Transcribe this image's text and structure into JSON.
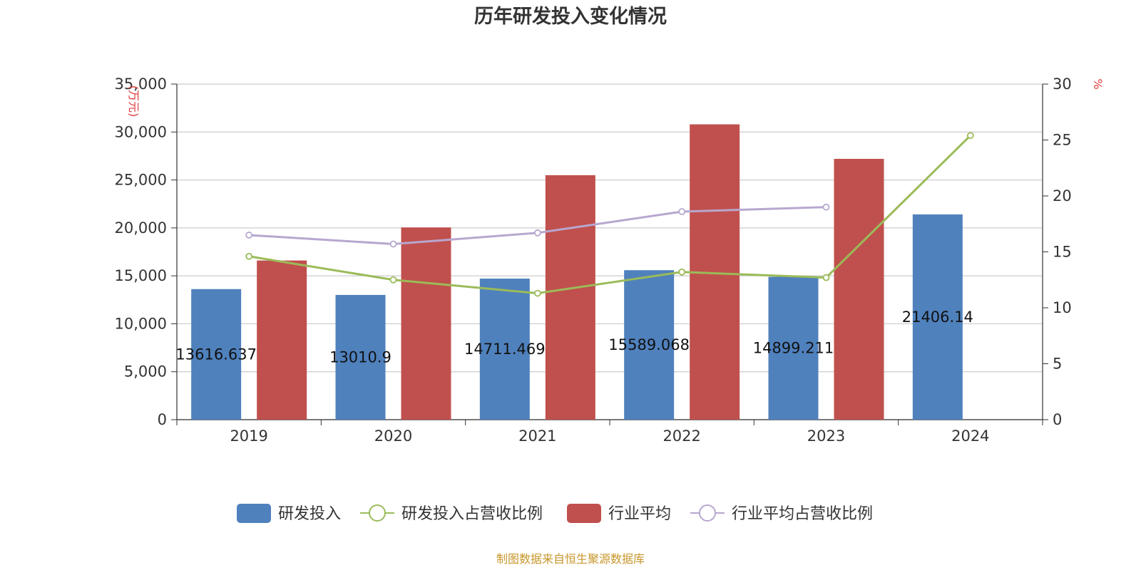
{
  "chart_data": {
    "type": "bar",
    "title": "历年研发投入变化情况",
    "categories": [
      "2019",
      "2020",
      "2021",
      "2022",
      "2023",
      "2024"
    ],
    "y_left": {
      "unit": "(万元)",
      "min": 0,
      "max": 35000,
      "ticks": [
        0,
        5000,
        10000,
        15000,
        20000,
        25000,
        30000,
        35000
      ],
      "tick_labels": [
        "0",
        "5,000",
        "10,000",
        "15,000",
        "20,000",
        "25,000",
        "30,000",
        "35,000"
      ]
    },
    "y_right": {
      "unit": "%",
      "min": 0,
      "max": 30,
      "ticks": [
        0,
        5,
        10,
        15,
        20,
        25,
        30
      ],
      "tick_labels": [
        "0",
        "5",
        "10",
        "15",
        "20",
        "25",
        "30"
      ]
    },
    "grid": true,
    "legend_position": "bottom",
    "series": [
      {
        "name": "研发投入",
        "type": "bar",
        "axis": "left",
        "color": "#4f81bd",
        "values": [
          13616.637,
          13010.9,
          14711.469,
          15589.068,
          14899.211,
          21406.14
        ],
        "labels": [
          "13616.637",
          "13010.9",
          "14711.469",
          "15589.068",
          "14899.211",
          "21406.14"
        ]
      },
      {
        "name": "研发投入占营收比例",
        "type": "line",
        "axis": "right",
        "color": "#9bbb59",
        "values": [
          14.6,
          12.5,
          11.3,
          13.2,
          12.7,
          25.4
        ]
      },
      {
        "name": "行业平均",
        "type": "bar",
        "axis": "left",
        "color": "#c0504d",
        "values": [
          16600,
          20050,
          25500,
          30800,
          27200,
          null
        ]
      },
      {
        "name": "行业平均占营收比例",
        "type": "line",
        "axis": "right",
        "color": "#b7a7cf",
        "values": [
          16.5,
          15.7,
          16.7,
          18.6,
          19.0,
          null
        ]
      }
    ]
  },
  "source_note": "制图数据来自恒生聚源数据库"
}
